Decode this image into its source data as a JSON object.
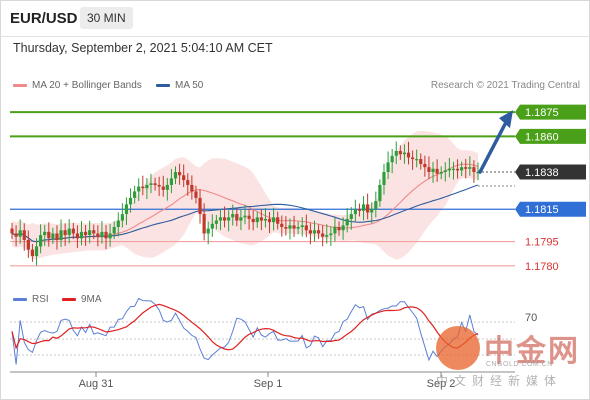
{
  "header": {
    "symbol": "EUR/USD",
    "timeframe": "30 MIN"
  },
  "datetime": "Thursday, September 2, 2021 5:04:10 AM CET",
  "legend": [
    {
      "label": "MA 20 + Bollinger Bands",
      "color": "#f08a8a"
    },
    {
      "label": "MA 50",
      "color": "#2e5c9e"
    }
  ],
  "credit": "Research © 2021 Trading Central",
  "rsi_legend": [
    {
      "label": "RSI",
      "color": "#5b7fd6"
    },
    {
      "label": "9MA",
      "color": "#e02020"
    }
  ],
  "colors": {
    "up": "#2e9e3a",
    "down": "#c0392b",
    "resistance": "#4aa018",
    "support": "#2f6fd6",
    "minor": "#f2a0a0",
    "arrow": "#2e5c9e"
  },
  "chart_data": {
    "type": "candlestick",
    "x_ticks": [
      "Aug 31",
      "Sep 1",
      "Sep 2"
    ],
    "ylim": [
      1.177,
      1.1885
    ],
    "levels": [
      {
        "label": "1.1875",
        "value": 1.1875,
        "kind": "resistance"
      },
      {
        "label": "1.1860",
        "value": 1.186,
        "kind": "resistance"
      },
      {
        "label": "1.1838",
        "value": 1.1838,
        "kind": "current"
      },
      {
        "label": "1.1815",
        "value": 1.1815,
        "kind": "support"
      },
      {
        "label": "1.1795",
        "value": 1.1795,
        "kind": "minor"
      },
      {
        "label": "1.1780",
        "value": 1.178,
        "kind": "minor"
      }
    ],
    "close_series": [
      1.18,
      1.1798,
      1.1802,
      1.1796,
      1.179,
      1.1786,
      1.1792,
      1.1799,
      1.1801,
      1.1797,
      1.18,
      1.1796,
      1.1802,
      1.1799,
      1.1803,
      1.18,
      1.1797,
      1.1801,
      1.1799,
      1.1802,
      1.18,
      1.1798,
      1.1801,
      1.1797,
      1.18,
      1.1804,
      1.1808,
      1.1812,
      1.1818,
      1.1822,
      1.1826,
      1.1829,
      1.1828,
      1.183,
      1.1831,
      1.183,
      1.1829,
      1.1827,
      1.183,
      1.1834,
      1.1838,
      1.1836,
      1.1833,
      1.183,
      1.1826,
      1.1822,
      1.1812,
      1.18,
      1.1803,
      1.1806,
      1.1808,
      1.181,
      1.1808,
      1.181,
      1.1812,
      1.1808,
      1.181,
      1.1811,
      1.1809,
      1.1807,
      1.181,
      1.1808,
      1.1809,
      1.1807,
      1.181,
      1.1806,
      1.1804,
      1.1803,
      1.1805,
      1.1803,
      1.1804,
      1.1805,
      1.1802,
      1.18,
      1.1802,
      1.18,
      1.1798,
      1.1799,
      1.18,
      1.1804,
      1.1802,
      1.1805,
      1.1809,
      1.1812,
      1.1815,
      1.1814,
      1.1818,
      1.1813,
      1.1815,
      1.182,
      1.183,
      1.1838,
      1.1844,
      1.1848,
      1.1851,
      1.1849,
      1.185,
      1.1847,
      1.1846,
      1.1846,
      1.1843,
      1.1841,
      1.1838,
      1.184,
      1.1837,
      1.1838,
      1.1839,
      1.184,
      1.184,
      1.1839,
      1.1841,
      1.184,
      1.1841,
      1.1838,
      1.1838
    ],
    "ma50_end": 1.183,
    "projection_target": 1.1875,
    "rsi_level": 70
  }
}
